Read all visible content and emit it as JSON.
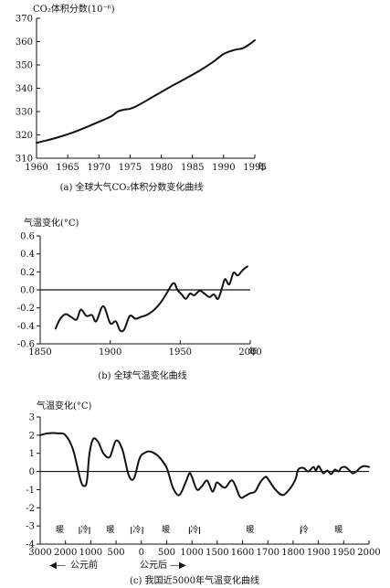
{
  "chart_data": [
    {
      "type": "line",
      "ylabel": "CO₂体积分数(10⁻⁶)",
      "x_unit": "年",
      "caption": "(a) 全球大气CO₂体积分数变化曲线",
      "xlim": [
        1960,
        1995
      ],
      "ylim": [
        310,
        370
      ],
      "xticks": [
        1960,
        1965,
        1970,
        1975,
        1980,
        1985,
        1990,
        1995
      ],
      "yticks": [
        310,
        320,
        330,
        340,
        350,
        360,
        370
      ],
      "x": [
        1960,
        1962,
        1964,
        1966,
        1968,
        1970,
        1972,
        1973,
        1974,
        1975,
        1976,
        1978,
        1980,
        1982,
        1984,
        1986,
        1988,
        1989,
        1990,
        1991,
        1992,
        1993,
        1994,
        1995
      ],
      "values": [
        316.6,
        317.9,
        319.4,
        321.2,
        323.3,
        325.6,
        328.0,
        330.0,
        330.8,
        331.2,
        332.3,
        335.3,
        338.4,
        341.4,
        344.3,
        347.3,
        350.7,
        352.7,
        354.7,
        355.8,
        356.6,
        357.1,
        358.6,
        360.6
      ],
      "grid": false
    },
    {
      "type": "line",
      "ylabel": "气温变化(°C)",
      "x_unit": "年",
      "caption": "(b) 全球气温变化曲线",
      "xlim": [
        1850,
        2000
      ],
      "ylim": [
        -0.6,
        0.6
      ],
      "xticks": [
        1850,
        1900,
        1950,
        2000
      ],
      "yticks": [
        -0.6,
        -0.4,
        -0.2,
        0.0,
        0.2,
        0.4,
        0.6
      ],
      "ytick_labels": [
        "-0.6",
        "-0.4",
        "-0.2",
        "0.0",
        "0.2",
        "0.4",
        "0.6"
      ],
      "x": [
        1861,
        1864,
        1868,
        1872,
        1876,
        1879,
        1883,
        1887,
        1890,
        1895,
        1900,
        1904,
        1907,
        1910,
        1914,
        1918,
        1922,
        1926,
        1930,
        1934,
        1937,
        1941,
        1944,
        1946,
        1948,
        1951,
        1954,
        1957,
        1960,
        1964,
        1968,
        1971,
        1974,
        1977,
        1980,
        1982,
        1985,
        1988,
        1991,
        1994,
        1996,
        1998
      ],
      "values": [
        -0.43,
        -0.33,
        -0.27,
        -0.3,
        -0.33,
        -0.22,
        -0.29,
        -0.28,
        -0.35,
        -0.18,
        -0.37,
        -0.35,
        -0.45,
        -0.44,
        -0.29,
        -0.32,
        -0.3,
        -0.28,
        -0.24,
        -0.18,
        -0.12,
        -0.02,
        0.06,
        0.07,
        0.0,
        -0.05,
        -0.1,
        -0.04,
        -0.06,
        -0.01,
        -0.05,
        -0.08,
        -0.05,
        -0.1,
        0.03,
        0.12,
        0.06,
        0.19,
        0.16,
        0.21,
        0.24,
        0.26
      ],
      "grid": false
    },
    {
      "type": "line",
      "ylabel": "气温变化(°C)",
      "caption": "(c) 我国近5000年气温变化曲线",
      "ylim": [
        -4,
        3
      ],
      "yticks": [
        -4,
        -3,
        -2,
        -1,
        0,
        1,
        2,
        3
      ],
      "xtick_labels": [
        "3000",
        "2000",
        "1000",
        "500",
        "0",
        "500",
        "1000",
        "1500",
        "1600",
        "1700",
        "1800",
        "1900",
        "1950",
        "2000"
      ],
      "era_labels": {
        "bc": "公元前",
        "ad": "公元后",
        "arrow_left": "◀—",
        "arrow_right": "—▶"
      },
      "periods": [
        "暖",
        "冷",
        "暖",
        "冷",
        "暖",
        "冷",
        "暖",
        "冷",
        "暖"
      ],
      "x": [
        0,
        0.3,
        0.7,
        1.0,
        1.3,
        1.6,
        1.75,
        1.85,
        1.95,
        2.1,
        2.3,
        2.5,
        2.75,
        3.0,
        3.25,
        3.5,
        3.7,
        3.9,
        4.0,
        4.1,
        4.25,
        4.45,
        4.7,
        5.0,
        5.25,
        5.5,
        5.75,
        5.9,
        6.0,
        6.2,
        6.4,
        6.6,
        6.8,
        6.9,
        7.0,
        7.3,
        7.6,
        7.9,
        8.1,
        8.3,
        8.5,
        8.7,
        8.9,
        9.0,
        9.3,
        9.6,
        9.9,
        10.1,
        10.2,
        10.4,
        10.6,
        10.8,
        10.9,
        11.0,
        11.1,
        11.2,
        11.35,
        11.5,
        11.65,
        11.8,
        11.9,
        12.05,
        12.2,
        12.35,
        12.5,
        12.65,
        12.8,
        13.0
      ],
      "values": [
        2.0,
        2.1,
        2.1,
        2.0,
        1.2,
        -0.5,
        -0.8,
        -0.5,
        1.0,
        1.8,
        1.6,
        1.0,
        0.8,
        1.7,
        1.2,
        -0.2,
        -0.4,
        0.6,
        0.9,
        1.0,
        1.1,
        1.05,
        0.8,
        0.2,
        -0.9,
        -1.3,
        -0.6,
        -0.1,
        -0.3,
        -1.0,
        -0.8,
        -0.5,
        -1.1,
        -0.9,
        -0.6,
        -0.9,
        -0.5,
        -1.4,
        -1.35,
        -1.2,
        -1.1,
        -0.6,
        -0.3,
        -0.4,
        -1.0,
        -1.3,
        -0.9,
        -0.4,
        0.1,
        0.2,
        0.0,
        0.25,
        0.05,
        0.3,
        0.1,
        -0.1,
        0.05,
        -0.15,
        0.1,
        0.0,
        0.2,
        0.25,
        0.1,
        -0.1,
        0.0,
        0.2,
        0.3,
        0.25
      ],
      "grid": false
    }
  ]
}
